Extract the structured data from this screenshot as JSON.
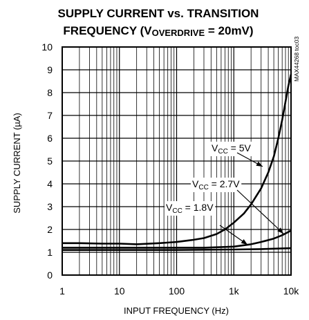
{
  "chart_data": {
    "type": "line",
    "title_line1": "SUPPLY CURRENT vs. TRANSITION",
    "title_line2_prefix": "FREQUENCY (V",
    "title_line2_sub": "OVERDRIVE",
    "title_line2_suffix": " = 20mV)",
    "xlabel": "INPUT FREQUENCY (Hz)",
    "ylabel": "SUPPLY CURRENT (µA)",
    "x_scale": "log",
    "xlim": [
      1,
      10000
    ],
    "ylim": [
      0,
      10
    ],
    "x_ticks": [
      {
        "value": 1,
        "label": "1"
      },
      {
        "value": 10,
        "label": "10"
      },
      {
        "value": 100,
        "label": "100"
      },
      {
        "value": 1000,
        "label": "1k"
      },
      {
        "value": 10000,
        "label": "10k"
      }
    ],
    "y_ticks": [
      {
        "value": 0,
        "label": "0"
      },
      {
        "value": 1,
        "label": "1"
      },
      {
        "value": 2,
        "label": "2"
      },
      {
        "value": 3,
        "label": "3"
      },
      {
        "value": 4,
        "label": "4"
      },
      {
        "value": 5,
        "label": "5"
      },
      {
        "value": 6,
        "label": "6"
      },
      {
        "value": 7,
        "label": "7"
      },
      {
        "value": 8,
        "label": "8"
      },
      {
        "value": 9,
        "label": "9"
      },
      {
        "value": 10,
        "label": "10"
      }
    ],
    "grid": true,
    "side_code": "MAX44268 toc03",
    "series": [
      {
        "name_prefix": "V",
        "name_sub": "CC",
        "name_suffix": " = 5V",
        "points": [
          [
            1,
            1.4
          ],
          [
            2,
            1.4
          ],
          [
            5,
            1.38
          ],
          [
            10,
            1.38
          ],
          [
            20,
            1.35
          ],
          [
            50,
            1.4
          ],
          [
            100,
            1.45
          ],
          [
            200,
            1.55
          ],
          [
            300,
            1.62
          ],
          [
            500,
            1.8
          ],
          [
            700,
            2.0
          ],
          [
            1000,
            2.3
          ],
          [
            1500,
            2.7
          ],
          [
            2000,
            3.1
          ],
          [
            3000,
            3.8
          ],
          [
            4000,
            4.5
          ],
          [
            5000,
            5.2
          ],
          [
            6000,
            6.0
          ],
          [
            7000,
            6.8
          ],
          [
            8000,
            7.6
          ],
          [
            9000,
            8.3
          ],
          [
            10000,
            8.8
          ]
        ]
      },
      {
        "name_prefix": "V",
        "name_sub": "CC",
        "name_suffix": " = 2.7V",
        "points": [
          [
            1,
            1.2
          ],
          [
            10,
            1.2
          ],
          [
            100,
            1.2
          ],
          [
            300,
            1.2
          ],
          [
            1000,
            1.25
          ],
          [
            2000,
            1.35
          ],
          [
            3000,
            1.45
          ],
          [
            5000,
            1.6
          ],
          [
            7000,
            1.75
          ],
          [
            10000,
            1.95
          ]
        ]
      },
      {
        "name_prefix": "V",
        "name_sub": "CC",
        "name_suffix": " = 1.8V",
        "points": [
          [
            1,
            1.1
          ],
          [
            10,
            1.1
          ],
          [
            100,
            1.1
          ],
          [
            1000,
            1.12
          ],
          [
            3000,
            1.14
          ],
          [
            10000,
            1.18
          ]
        ]
      }
    ],
    "annotations": [
      {
        "series_index": 0,
        "text_x": 306,
        "text_y": 219,
        "arrow_from": [
          343,
          221
        ],
        "arrow_to": [
          380,
          241
        ]
      },
      {
        "series_index": 1,
        "text_x": 278,
        "text_y": 271,
        "arrow_from": [
          343,
          275
        ],
        "arrow_to": [
          410,
          338
        ]
      },
      {
        "series_index": 2,
        "text_x": 240,
        "text_y": 305,
        "arrow_from": [
          318,
          326
        ],
        "arrow_to": [
          358,
          354
        ]
      }
    ]
  }
}
